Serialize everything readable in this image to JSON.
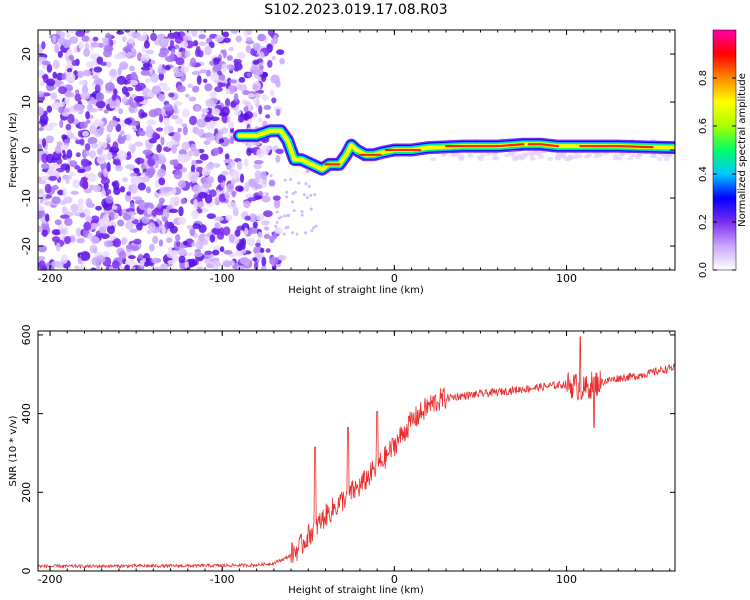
{
  "chart_data": [
    {
      "type": "heatmap",
      "title": "S102.2023.019.17.08.R03",
      "xlabel": "Height of straight line (km)",
      "ylabel": "Frequency (Hz)",
      "xlim": [
        -207,
        163
      ],
      "ylim": [
        -25,
        25
      ],
      "xticks": [
        -200,
        -100,
        0,
        100
      ],
      "xtick_labels": [
        "-200",
        "-100",
        "0",
        "100"
      ],
      "yticks": [
        -20,
        -10,
        0,
        10,
        20
      ],
      "ytick_labels": [
        "-20",
        "-10",
        "0",
        "10",
        "20"
      ],
      "colorbar": {
        "label": "Normalized spectral amplitude",
        "range": [
          0,
          1
        ],
        "ticks": [
          0.0,
          0.2,
          0.4,
          0.6,
          0.8
        ],
        "tick_labels": [
          "0.0",
          "0.2",
          "0.4",
          "0.6",
          "0.8"
        ],
        "colors": [
          "#ffffff",
          "#c9a6ff",
          "#7a2cf0",
          "#0000ff",
          "#00c8ff",
          "#00ff66",
          "#a8ff00",
          "#ffff00",
          "#ff8800",
          "#ff0000",
          "#ff00aa"
        ]
      },
      "noise_region_x": [
        -207,
        -75
      ],
      "signal_ridge": [
        {
          "x": -90,
          "y": 3
        },
        {
          "x": -80,
          "y": 3
        },
        {
          "x": -72,
          "y": 4
        },
        {
          "x": -66,
          "y": 4
        },
        {
          "x": -62,
          "y": 2
        },
        {
          "x": -58,
          "y": -2
        },
        {
          "x": -54,
          "y": -2
        },
        {
          "x": -48,
          "y": -3
        },
        {
          "x": -42,
          "y": -4
        },
        {
          "x": -38,
          "y": -3
        },
        {
          "x": -32,
          "y": -3
        },
        {
          "x": -28,
          "y": -1
        },
        {
          "x": -25,
          "y": 1
        },
        {
          "x": -22,
          "y": 0
        },
        {
          "x": -17,
          "y": -1
        },
        {
          "x": -12,
          "y": -1
        },
        {
          "x": -7,
          "y": -0.5
        },
        {
          "x": 0,
          "y": 0
        },
        {
          "x": 10,
          "y": 0
        },
        {
          "x": 20,
          "y": 0.5
        },
        {
          "x": 40,
          "y": 0.8
        },
        {
          "x": 60,
          "y": 0.8
        },
        {
          "x": 75,
          "y": 1.2
        },
        {
          "x": 85,
          "y": 1.2
        },
        {
          "x": 95,
          "y": 0.8
        },
        {
          "x": 110,
          "y": 0.8
        },
        {
          "x": 130,
          "y": 0.8
        },
        {
          "x": 150,
          "y": 0.6
        },
        {
          "x": 163,
          "y": 0.5
        }
      ]
    },
    {
      "type": "line",
      "xlabel": "Height of straight line (km)",
      "ylabel": "SNR (10 * v/v)",
      "xlim": [
        -207,
        163
      ],
      "ylim": [
        0,
        610
      ],
      "xticks": [
        -200,
        -100,
        0,
        100
      ],
      "xtick_labels": [
        "-200",
        "-100",
        "0",
        "100"
      ],
      "yticks": [
        0,
        200,
        400,
        600
      ],
      "ytick_labels": [
        "0",
        "200",
        "400",
        "600"
      ],
      "series": [
        {
          "name": "SNR",
          "color": "#e83030",
          "x": [
            -207,
            -180,
            -150,
            -120,
            -100,
            -80,
            -70,
            -62,
            -55,
            -50,
            -45,
            -40,
            -35,
            -30,
            -25,
            -20,
            -15,
            -10,
            -5,
            0,
            5,
            10,
            15,
            20,
            25,
            30,
            40,
            50,
            60,
            70,
            80,
            90,
            100,
            105,
            110,
            115,
            120,
            130,
            140,
            150,
            160,
            163
          ],
          "y": [
            12,
            12,
            13,
            13,
            14,
            15,
            20,
            35,
            60,
            90,
            115,
            140,
            160,
            180,
            200,
            215,
            240,
            265,
            290,
            320,
            350,
            380,
            400,
            420,
            432,
            440,
            445,
            450,
            455,
            460,
            465,
            470,
            475,
            470,
            460,
            475,
            480,
            490,
            495,
            505,
            515,
            518
          ]
        }
      ],
      "annotations": [
        {
          "x": -46,
          "y": 315,
          "note": "spike"
        },
        {
          "x": -27,
          "y": 365,
          "note": "spike"
        },
        {
          "x": -10,
          "y": 405,
          "note": "spike"
        },
        {
          "x": 108,
          "y": 595,
          "note": "spike"
        },
        {
          "x": 116,
          "y": 365,
          "note": "dip"
        }
      ]
    }
  ]
}
